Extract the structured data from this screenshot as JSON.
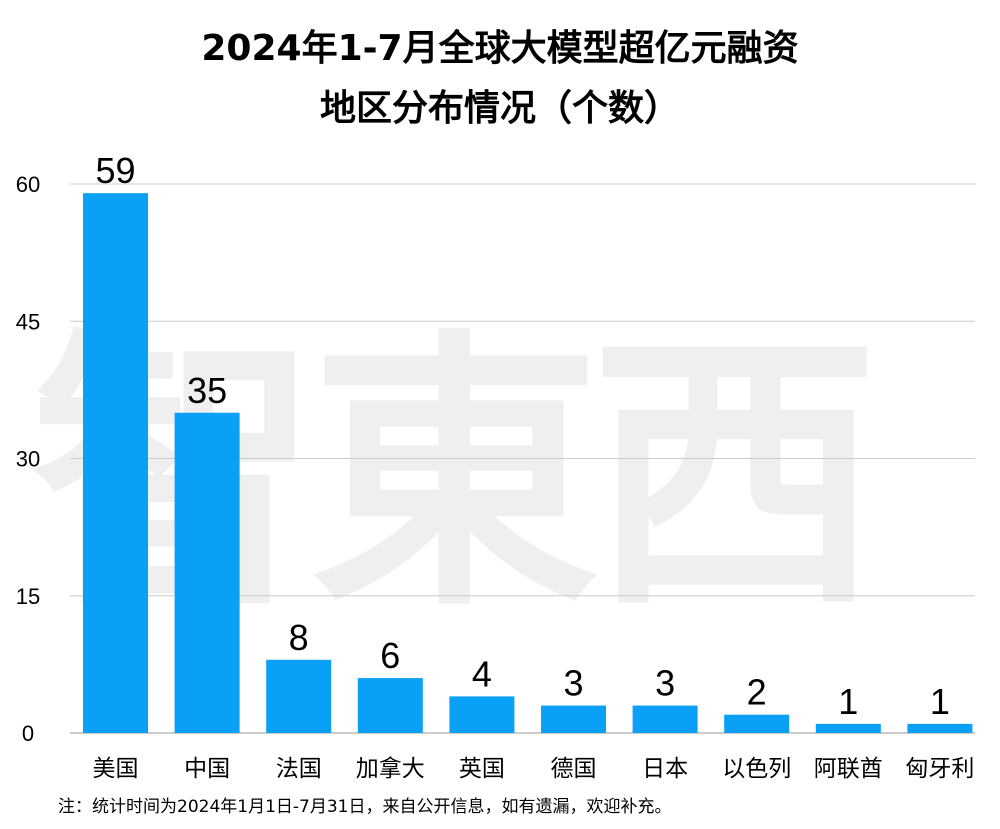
{
  "watermark": "智東西",
  "chart_data": {
    "type": "bar",
    "title": "2024年1-7月全球大模型超亿元融资",
    "subtitle": "地区分布情况（个数）",
    "categories": [
      "美国",
      "中国",
      "法国",
      "加拿大",
      "英国",
      "德国",
      "日本",
      "以色列",
      "阿联酋",
      "匈牙利"
    ],
    "values": [
      59,
      35,
      8,
      6,
      4,
      3,
      3,
      2,
      1,
      1
    ],
    "ylim": [
      0,
      60
    ],
    "yticks": [
      0,
      15,
      30,
      45,
      60
    ],
    "grid": true,
    "bar_color": "#0aa0f5",
    "xlabel": "",
    "ylabel": ""
  },
  "note": "注：统计时间为2024年1月1日-7月31日，来自公开信息，如有遗漏，欢迎补充。"
}
